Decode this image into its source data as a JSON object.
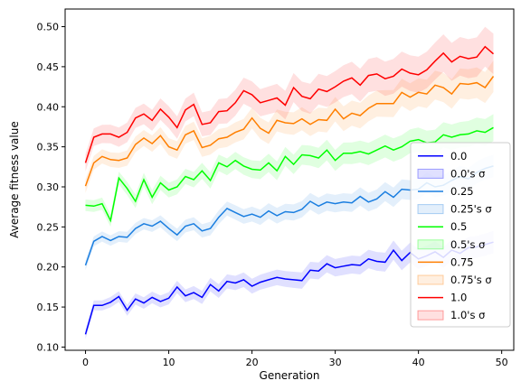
{
  "chart_data": {
    "type": "line",
    "title": "",
    "xlabel": "Generation",
    "ylabel": "Average fitness value",
    "xlim": [
      -2.45,
      51.45
    ],
    "ylim": [
      0.096,
      0.522
    ],
    "xticks": [
      0,
      10,
      20,
      30,
      40,
      50
    ],
    "yticks": [
      0.1,
      0.15,
      0.2,
      0.25,
      0.3,
      0.35,
      0.4,
      0.45,
      0.5
    ],
    "ytick_labels": [
      "0.10",
      "0.15",
      "0.20",
      "0.25",
      "0.30",
      "0.35",
      "0.40",
      "0.45",
      "0.50"
    ],
    "grid": false,
    "legend_position": "center-right",
    "x": [
      0,
      1,
      2,
      3,
      4,
      5,
      6,
      7,
      8,
      9,
      10,
      11,
      12,
      13,
      14,
      15,
      16,
      17,
      18,
      19,
      20,
      21,
      22,
      23,
      24,
      25,
      26,
      27,
      28,
      29,
      30,
      31,
      32,
      33,
      34,
      35,
      36,
      37,
      38,
      39,
      40,
      41,
      42,
      43,
      44,
      45,
      46,
      47,
      48,
      49
    ],
    "series": [
      {
        "name": "0.0",
        "band_name": "0.0's σ",
        "color": "#0000ff",
        "values": [
          0.116,
          0.152,
          0.152,
          0.156,
          0.163,
          0.146,
          0.16,
          0.155,
          0.162,
          0.157,
          0.161,
          0.175,
          0.164,
          0.168,
          0.162,
          0.178,
          0.17,
          0.182,
          0.18,
          0.184,
          0.176,
          0.181,
          0.184,
          0.187,
          0.185,
          0.184,
          0.183,
          0.196,
          0.195,
          0.204,
          0.199,
          0.201,
          0.203,
          0.202,
          0.21,
          0.207,
          0.206,
          0.221,
          0.208,
          0.218,
          0.21,
          0.214,
          0.219,
          0.212,
          0.221,
          0.217,
          0.224,
          0.225,
          0.228,
          0.231
        ],
        "sigma": 0.01
      },
      {
        "name": "0.25",
        "band_name": "0.25's σ",
        "color": "#1a7ee0",
        "values": [
          0.202,
          0.232,
          0.238,
          0.233,
          0.238,
          0.237,
          0.248,
          0.254,
          0.251,
          0.257,
          0.248,
          0.24,
          0.251,
          0.254,
          0.245,
          0.248,
          0.262,
          0.273,
          0.268,
          0.263,
          0.266,
          0.262,
          0.27,
          0.264,
          0.269,
          0.268,
          0.272,
          0.282,
          0.276,
          0.281,
          0.279,
          0.281,
          0.28,
          0.288,
          0.281,
          0.285,
          0.294,
          0.287,
          0.297,
          0.296,
          0.297,
          0.305,
          0.3,
          0.302,
          0.308,
          0.313,
          0.31,
          0.318,
          0.323,
          0.326
        ],
        "sigma": 0.01
      },
      {
        "name": "0.5",
        "band_name": "0.5's σ",
        "color": "#00ff00",
        "values": [
          0.277,
          0.276,
          0.279,
          0.258,
          0.311,
          0.298,
          0.282,
          0.309,
          0.287,
          0.305,
          0.296,
          0.3,
          0.313,
          0.309,
          0.32,
          0.308,
          0.33,
          0.325,
          0.333,
          0.326,
          0.322,
          0.321,
          0.33,
          0.32,
          0.338,
          0.328,
          0.34,
          0.339,
          0.336,
          0.346,
          0.333,
          0.342,
          0.342,
          0.344,
          0.341,
          0.346,
          0.351,
          0.346,
          0.35,
          0.357,
          0.359,
          0.355,
          0.356,
          0.365,
          0.362,
          0.365,
          0.366,
          0.37,
          0.368,
          0.374
        ],
        "sigma": 0.012
      },
      {
        "name": "0.75",
        "band_name": "0.75's σ",
        "color": "#ff7f00",
        "values": [
          0.301,
          0.33,
          0.338,
          0.334,
          0.333,
          0.336,
          0.353,
          0.361,
          0.354,
          0.364,
          0.35,
          0.346,
          0.365,
          0.37,
          0.349,
          0.352,
          0.36,
          0.362,
          0.368,
          0.372,
          0.386,
          0.373,
          0.367,
          0.383,
          0.38,
          0.379,
          0.385,
          0.378,
          0.384,
          0.383,
          0.397,
          0.385,
          0.392,
          0.389,
          0.398,
          0.404,
          0.404,
          0.404,
          0.418,
          0.412,
          0.418,
          0.416,
          0.427,
          0.424,
          0.416,
          0.429,
          0.428,
          0.43,
          0.424,
          0.438
        ],
        "sigma": 0.014
      },
      {
        "name": "1.0",
        "band_name": "1.0's σ",
        "color": "#ff0000",
        "values": [
          0.33,
          0.362,
          0.366,
          0.366,
          0.362,
          0.368,
          0.386,
          0.391,
          0.383,
          0.397,
          0.387,
          0.374,
          0.396,
          0.403,
          0.378,
          0.38,
          0.394,
          0.395,
          0.405,
          0.42,
          0.415,
          0.405,
          0.408,
          0.411,
          0.402,
          0.424,
          0.413,
          0.41,
          0.422,
          0.419,
          0.425,
          0.432,
          0.436,
          0.427,
          0.439,
          0.441,
          0.435,
          0.438,
          0.447,
          0.442,
          0.44,
          0.446,
          0.457,
          0.467,
          0.456,
          0.463,
          0.46,
          0.462,
          0.475,
          0.466
        ],
        "sigma": 0.018
      }
    ]
  }
}
